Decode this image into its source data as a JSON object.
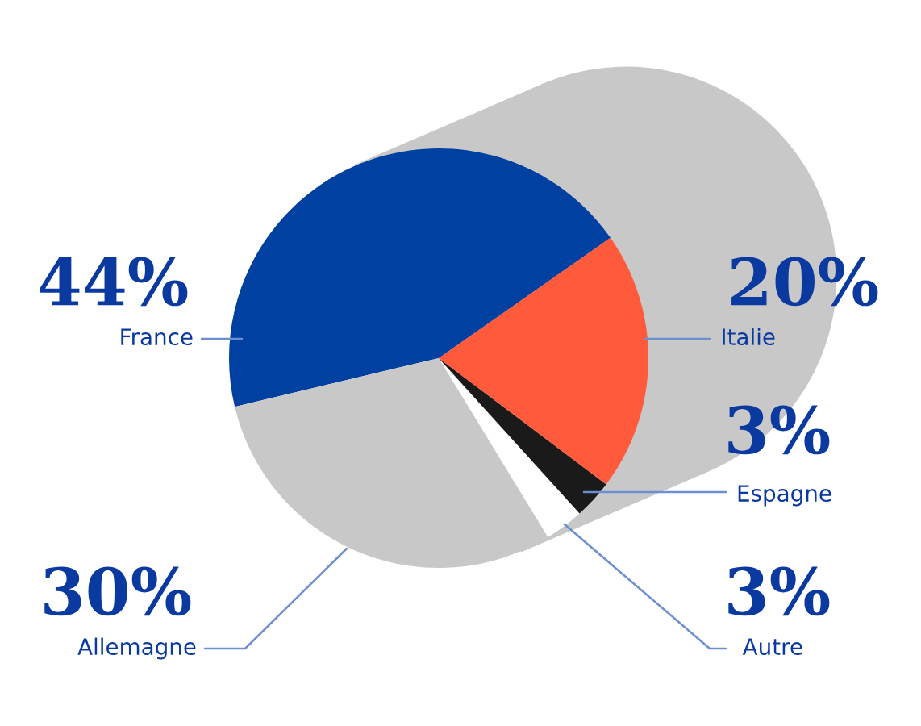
{
  "chart_data": {
    "type": "pie",
    "categories": [
      "France",
      "Allemagne",
      "Autre",
      "Espagne",
      "Italie"
    ],
    "values": [
      44,
      30,
      3,
      3,
      20
    ],
    "colors": [
      "#0040a0",
      "#c8c8c8",
      "#ffffff",
      "#1a1a1a",
      "#ff5a3c"
    ],
    "value_labels": [
      "44%",
      "30%",
      "3%",
      "3%",
      "20%"
    ],
    "legend": false
  }
}
